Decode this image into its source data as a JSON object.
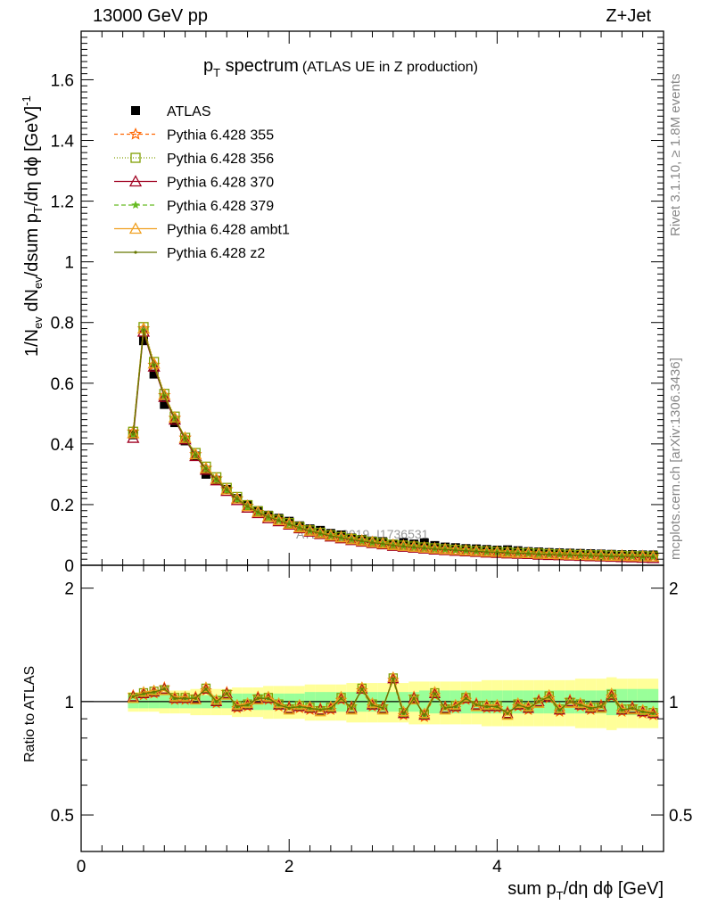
{
  "header": {
    "left": "13000 GeV pp",
    "right": "Z+Jet"
  },
  "side_text": {
    "rivet": "Rivet 3.1.10, ≥ 1.8M events",
    "mcplots": "mcplots.cern.ch [arXiv:1306.3436]"
  },
  "watermark": "ATLAS_2019_I1736531",
  "chart_data": {
    "type": "scatter",
    "title_main": "p",
    "title_sub": "T",
    "title_rest": " spectrum",
    "title_paren": "(ATLAS UE in Z production)",
    "xlabel": "sum p_T/dη dϕ [GeV]",
    "ylabel": "1/N_ev dN_ev/dsum p_T/dη dϕ [GeV]^-1",
    "xlim": [
      0,
      5.6
    ],
    "ylim": [
      0,
      1.76
    ],
    "xticks": [
      "0",
      "2",
      "4"
    ],
    "yticks": [
      "0",
      "0.2",
      "0.4",
      "0.6",
      "0.8",
      "1",
      "1.2",
      "1.4",
      "1.6"
    ],
    "legend_position": "top-left",
    "x": [
      0.5,
      0.6,
      0.7,
      0.8,
      0.9,
      1.0,
      1.1,
      1.2,
      1.3,
      1.4,
      1.5,
      1.6,
      1.7,
      1.8,
      1.9,
      2.0,
      2.1,
      2.2,
      2.3,
      2.4,
      2.5,
      2.6,
      2.7,
      2.8,
      2.9,
      3.0,
      3.1,
      3.2,
      3.3,
      3.4,
      3.5,
      3.6,
      3.7,
      3.8,
      3.9,
      4.0,
      4.1,
      4.2,
      4.3,
      4.4,
      4.5,
      4.6,
      4.7,
      4.8,
      4.9,
      5.0,
      5.1,
      5.2,
      5.3,
      5.4,
      5.5
    ],
    "series": [
      {
        "name": "ATLAS",
        "marker": "square",
        "color": "#000000",
        "values": [
          0.43,
          0.74,
          0.63,
          0.53,
          0.47,
          0.41,
          0.36,
          0.3,
          0.28,
          0.25,
          0.22,
          0.2,
          0.18,
          0.165,
          0.155,
          0.145,
          0.13,
          0.12,
          0.115,
          0.105,
          0.1,
          0.09,
          0.085,
          0.08,
          0.078,
          0.07,
          0.075,
          0.07,
          0.074,
          0.065,
          0.06,
          0.058,
          0.055,
          0.054,
          0.052,
          0.05,
          0.051,
          0.048,
          0.045,
          0.044,
          0.042,
          0.041,
          0.04,
          0.039,
          0.038,
          0.037,
          0.036,
          0.035,
          0.035,
          0.034,
          0.034
        ]
      },
      {
        "name": "Pythia 6.428 355",
        "marker": "star-open",
        "color": "#ff6600",
        "dash": "4,3",
        "values": [
          0.44,
          0.78,
          0.66,
          0.56,
          0.485,
          0.42,
          0.365,
          0.32,
          0.285,
          0.25,
          0.22,
          0.195,
          0.175,
          0.16,
          0.15,
          0.138,
          0.125,
          0.114,
          0.106,
          0.098,
          0.093,
          0.086,
          0.081,
          0.076,
          0.072,
          0.067,
          0.064,
          0.061,
          0.058,
          0.055,
          0.053,
          0.051,
          0.049,
          0.047,
          0.045,
          0.044,
          0.042,
          0.041,
          0.04,
          0.038,
          0.037,
          0.036,
          0.035,
          0.034,
          0.033,
          0.032,
          0.031,
          0.031,
          0.03,
          0.03,
          0.029
        ]
      },
      {
        "name": "Pythia 6.428 356",
        "marker": "square-open",
        "color": "#7f9f00",
        "dash": "1,2",
        "values": [
          0.44,
          0.785,
          0.67,
          0.565,
          0.49,
          0.42,
          0.37,
          0.325,
          0.29,
          0.255,
          0.225,
          0.198,
          0.178,
          0.162,
          0.15,
          0.139,
          0.126,
          0.115,
          0.107,
          0.099,
          0.093,
          0.087,
          0.082,
          0.077,
          0.073,
          0.068,
          0.065,
          0.062,
          0.059,
          0.056,
          0.053,
          0.051,
          0.049,
          0.047,
          0.046,
          0.044,
          0.043,
          0.041,
          0.04,
          0.039,
          0.037,
          0.036,
          0.035,
          0.034,
          0.033,
          0.033,
          0.032,
          0.031,
          0.03,
          0.03,
          0.029
        ]
      },
      {
        "name": "Pythia 6.428 370",
        "marker": "triangle-open",
        "color": "#a00020",
        "dash": "",
        "values": [
          0.42,
          0.77,
          0.655,
          0.555,
          0.48,
          0.415,
          0.36,
          0.315,
          0.28,
          0.245,
          0.215,
          0.19,
          0.172,
          0.155,
          0.145,
          0.134,
          0.122,
          0.111,
          0.103,
          0.095,
          0.089,
          0.083,
          0.078,
          0.073,
          0.069,
          0.064,
          0.061,
          0.058,
          0.055,
          0.052,
          0.05,
          0.048,
          0.046,
          0.044,
          0.042,
          0.041,
          0.039,
          0.038,
          0.037,
          0.035,
          0.034,
          0.033,
          0.032,
          0.031,
          0.03,
          0.029,
          0.028,
          0.027,
          0.026,
          0.025,
          0.024
        ]
      },
      {
        "name": "Pythia 6.428 379",
        "marker": "star-filled",
        "color": "#66bb22",
        "dash": "5,3",
        "values": [
          0.43,
          0.775,
          0.66,
          0.56,
          0.485,
          0.418,
          0.364,
          0.318,
          0.283,
          0.248,
          0.218,
          0.193,
          0.174,
          0.158,
          0.148,
          0.136,
          0.124,
          0.113,
          0.105,
          0.097,
          0.091,
          0.085,
          0.08,
          0.075,
          0.071,
          0.066,
          0.063,
          0.06,
          0.057,
          0.054,
          0.052,
          0.05,
          0.048,
          0.046,
          0.044,
          0.043,
          0.041,
          0.04,
          0.039,
          0.037,
          0.036,
          0.035,
          0.034,
          0.033,
          0.032,
          0.031,
          0.03,
          0.03,
          0.029,
          0.028,
          0.028
        ]
      },
      {
        "name": "Pythia 6.428 ambt1",
        "marker": "triangle-open",
        "color": "#f0a020",
        "dash": "",
        "values": [
          0.435,
          0.78,
          0.665,
          0.562,
          0.487,
          0.42,
          0.366,
          0.32,
          0.285,
          0.25,
          0.22,
          0.195,
          0.176,
          0.16,
          0.149,
          0.137,
          0.125,
          0.114,
          0.106,
          0.098,
          0.092,
          0.086,
          0.081,
          0.076,
          0.072,
          0.067,
          0.064,
          0.061,
          0.058,
          0.055,
          0.053,
          0.051,
          0.049,
          0.047,
          0.045,
          0.044,
          0.042,
          0.041,
          0.04,
          0.038,
          0.037,
          0.036,
          0.035,
          0.034,
          0.033,
          0.032,
          0.031,
          0.031,
          0.03,
          0.029,
          0.029
        ]
      },
      {
        "name": "Pythia 6.428 z2",
        "marker": "dot",
        "color": "#667700",
        "dash": "",
        "values": [
          0.432,
          0.775,
          0.66,
          0.558,
          0.485,
          0.418,
          0.364,
          0.318,
          0.284,
          0.249,
          0.219,
          0.194,
          0.175,
          0.159,
          0.148,
          0.136,
          0.124,
          0.113,
          0.105,
          0.097,
          0.091,
          0.085,
          0.08,
          0.075,
          0.071,
          0.066,
          0.063,
          0.06,
          0.057,
          0.054,
          0.052,
          0.05,
          0.048,
          0.046,
          0.044,
          0.043,
          0.041,
          0.04,
          0.039,
          0.037,
          0.036,
          0.035,
          0.034,
          0.033,
          0.032,
          0.031,
          0.03,
          0.03,
          0.029,
          0.028,
          0.028
        ]
      }
    ],
    "ratio": {
      "ylabel": "Ratio to ATLAS",
      "ylim": [
        0.4,
        2.3
      ],
      "yticks": [
        "0.5",
        "1",
        "2"
      ],
      "values": [
        1.03,
        1.05,
        1.06,
        1.08,
        1.02,
        1.02,
        1.02,
        1.08,
        1.0,
        1.05,
        0.97,
        0.98,
        1.02,
        1.02,
        0.98,
        0.96,
        0.97,
        0.96,
        0.95,
        0.96,
        1.02,
        0.96,
        1.08,
        0.98,
        0.96,
        1.15,
        0.93,
        1.02,
        0.92,
        1.05,
        0.96,
        0.97,
        1.02,
        0.98,
        0.97,
        0.97,
        0.93,
        0.98,
        0.96,
        1.0,
        1.03,
        0.95,
        1.0,
        0.98,
        0.96,
        0.97,
        1.04,
        0.95,
        0.96,
        0.94,
        0.93
      ],
      "band_green_halfwidth": [
        0.04,
        0.04,
        0.04,
        0.04,
        0.04,
        0.04,
        0.04,
        0.04,
        0.04,
        0.04,
        0.05,
        0.05,
        0.05,
        0.05,
        0.05,
        0.05,
        0.05,
        0.06,
        0.06,
        0.06,
        0.06,
        0.06,
        0.06,
        0.06,
        0.06,
        0.06,
        0.06,
        0.06,
        0.07,
        0.07,
        0.07,
        0.07,
        0.07,
        0.07,
        0.07,
        0.07,
        0.07,
        0.07,
        0.07,
        0.07,
        0.07,
        0.07,
        0.07,
        0.07,
        0.07,
        0.07,
        0.08,
        0.08,
        0.08,
        0.08,
        0.08
      ],
      "band_yellow_halfwidth": [
        0.06,
        0.06,
        0.06,
        0.07,
        0.07,
        0.07,
        0.08,
        0.08,
        0.08,
        0.08,
        0.09,
        0.09,
        0.09,
        0.1,
        0.1,
        0.1,
        0.1,
        0.11,
        0.11,
        0.11,
        0.11,
        0.12,
        0.12,
        0.12,
        0.12,
        0.12,
        0.12,
        0.13,
        0.13,
        0.13,
        0.13,
        0.13,
        0.13,
        0.13,
        0.14,
        0.14,
        0.14,
        0.14,
        0.14,
        0.14,
        0.14,
        0.14,
        0.14,
        0.15,
        0.15,
        0.15,
        0.16,
        0.15,
        0.15,
        0.15,
        0.15
      ]
    }
  }
}
